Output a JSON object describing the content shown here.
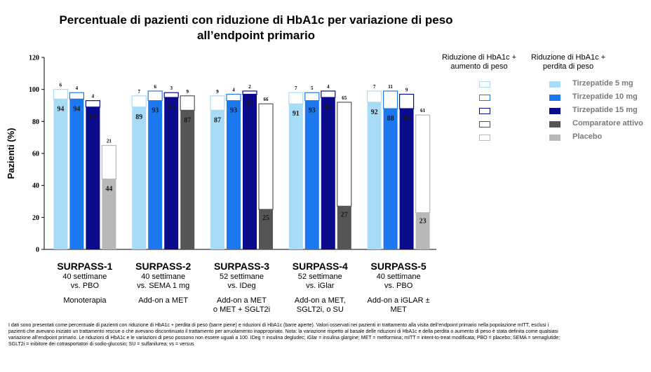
{
  "chart_data": {
    "type": "bar",
    "title": "Percentuale di pazienti con riduzione di HbA1c per variazione di peso all’endpoint primario",
    "ylabel": "Pazienti (%)",
    "ylim": [
      0,
      120
    ],
    "yticks": [
      0,
      20,
      40,
      60,
      80,
      100,
      120
    ],
    "grid": false,
    "legend_position": "right",
    "legend_headers": {
      "open": "Riduzione di HbA1c + aumento di peso",
      "filled": "Riduzione di HbA1c + perdita di peso"
    },
    "series": [
      {
        "name": "Tirzepatide 5 mg",
        "color": "#a8dcf6"
      },
      {
        "name": "Tirzepatide 10 mg",
        "color": "#1c78ee"
      },
      {
        "name": "Tirzepatide 15 mg",
        "color": "#0a0a8c"
      },
      {
        "name": "Comparatore attivo",
        "color": "#555555"
      },
      {
        "name": "Placebo",
        "color": "#b8b8b8"
      }
    ],
    "groups": [
      {
        "name": "SURPASS-1",
        "subtitle": [
          "40 settimane",
          "vs. PBO"
        ],
        "background": [
          "Monoterapia"
        ],
        "bars": [
          {
            "series": 0,
            "weight_loss": 94,
            "weight_gain": 6
          },
          {
            "series": 1,
            "weight_loss": 94,
            "weight_gain": 4
          },
          {
            "series": 2,
            "weight_loss": 89,
            "weight_gain": 4
          },
          {
            "series": 4,
            "weight_loss": 44,
            "weight_gain": 21
          }
        ]
      },
      {
        "name": "SURPASS-2",
        "subtitle": [
          "40 settimane",
          "vs. SEMA 1 mg"
        ],
        "background": [
          "Add-on a MET"
        ],
        "bars": [
          {
            "series": 0,
            "weight_loss": 89,
            "weight_gain": 7
          },
          {
            "series": 1,
            "weight_loss": 93,
            "weight_gain": 6
          },
          {
            "series": 2,
            "weight_loss": 95,
            "weight_gain": 3
          },
          {
            "series": 3,
            "weight_loss": 87,
            "weight_gain": 9
          }
        ]
      },
      {
        "name": "SURPASS-3",
        "subtitle": [
          "52 settimane",
          "vs. IDeg"
        ],
        "background": [
          "Add-on a MET",
          "o MET + SGLT2i"
        ],
        "bars": [
          {
            "series": 0,
            "weight_loss": 87,
            "weight_gain": 9
          },
          {
            "series": 1,
            "weight_loss": 93,
            "weight_gain": 4
          },
          {
            "series": 2,
            "weight_loss": 97,
            "weight_gain": 2
          },
          {
            "series": 3,
            "weight_loss": 25,
            "weight_gain": 66
          }
        ]
      },
      {
        "name": "SURPASS-4",
        "subtitle": [
          "52 settimane",
          "vs. iGlar"
        ],
        "background": [
          "Add-on a MET,",
          "SGLT2i, o SU"
        ],
        "bars": [
          {
            "series": 0,
            "weight_loss": 91,
            "weight_gain": 7
          },
          {
            "series": 1,
            "weight_loss": 93,
            "weight_gain": 5
          },
          {
            "series": 2,
            "weight_loss": 95,
            "weight_gain": 4
          },
          {
            "series": 3,
            "weight_loss": 27,
            "weight_gain": 65
          }
        ]
      },
      {
        "name": "SURPASS-5",
        "subtitle": [
          "40 settimane",
          "vs. PBO"
        ],
        "background": [
          "Add-on a iGLAR ±",
          "MET"
        ],
        "bars": [
          {
            "series": 0,
            "weight_loss": 92,
            "weight_gain": 7
          },
          {
            "series": 1,
            "weight_loss": 88,
            "weight_gain": 11
          },
          {
            "series": 2,
            "weight_loss": 88,
            "weight_gain": 9
          },
          {
            "series": 4,
            "weight_loss": 23,
            "weight_gain": 61
          }
        ]
      }
    ]
  },
  "footnote": "I dati sono presentati come percentuale di pazienti con riduzione di HbA1c + perdita di peso (barre piene) e riduzioni di HbA1c (barre aperte). Valori osservati nei pazienti in trattamento alla visita dell’endpoint primario nella popolazione mITT, esclusi i pazienti che avevano iniziato un trattamento rescue o che avevano discontinuato il trattamento per arruolamento inappropriato. Nota: la variazione rispetto al basale delle riduzioni di HbA1c e della perdita o aumento di peso è stata definita come qualsiasi variazione all’endpoint primario. Le riduzioni di HbA1c e le variazioni di peso possono non essere uguali a 100. IDeg = insulina degludec; iGlar = insulina glargine; MET = metformina; mITT = intent-to-treat modificata; PBO = placebo; SEMA = semaglutide; SGLT2i = inibitore dei cotrasportatori di sodio-glucosio; SU = sulfanilurea; vs = versus"
}
